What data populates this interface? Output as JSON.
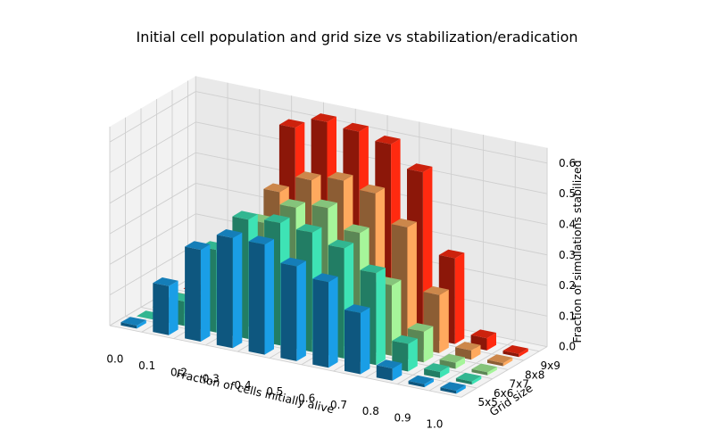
{
  "chart_data": {
    "type": "bar3d",
    "title": "Initial cell population and grid size vs stabilization/eradication",
    "xlabel": "Fraction of cells initially alive",
    "ylabel": "Grid size",
    "zlabel": "Fraction of simulations stabilized",
    "x": [
      0.0,
      0.1,
      0.2,
      0.3,
      0.4,
      0.5,
      0.6,
      0.7,
      0.8,
      0.9,
      1.0
    ],
    "x_tick_labels": [
      "0.0",
      "0.1",
      "0.2",
      "0.3",
      "0.4",
      "0.5",
      "0.6",
      "0.7",
      "0.8",
      "0.9",
      "1.0"
    ],
    "y_tick_labels": [
      "5x5",
      "6x6",
      "7x7",
      "8x8",
      "9x9"
    ],
    "z_tick_labels": [
      "0.0",
      "0.1",
      "0.2",
      "0.3",
      "0.4",
      "0.5",
      "0.6"
    ],
    "zlim": [
      0,
      0.65
    ],
    "grid": true,
    "series": [
      {
        "name": "5x5",
        "color": "#1a9ee6",
        "values": [
          0.01,
          0.16,
          0.3,
          0.36,
          0.36,
          0.31,
          0.28,
          0.2,
          0.04,
          0.01,
          0.01
        ]
      },
      {
        "name": "6x6",
        "color": "#3ee3b5",
        "values": [
          0.0,
          0.08,
          0.27,
          0.39,
          0.4,
          0.39,
          0.36,
          0.3,
          0.09,
          0.02,
          0.01
        ]
      },
      {
        "name": "7x7",
        "color": "#a6f59a",
        "values": [
          0.0,
          0.04,
          0.22,
          0.35,
          0.42,
          0.44,
          0.38,
          0.23,
          0.1,
          0.02,
          0.01
        ]
      },
      {
        "name": "8x8",
        "color": "#ffa95e",
        "values": [
          0.0,
          0.03,
          0.24,
          0.42,
          0.48,
          0.5,
          0.48,
          0.39,
          0.19,
          0.03,
          0.01
        ]
      },
      {
        "name": "9x9",
        "color": "#ff2a10",
        "values": [
          0.0,
          0.02,
          0.24,
          0.6,
          0.64,
          0.63,
          0.61,
          0.54,
          0.28,
          0.04,
          0.01
        ]
      }
    ]
  }
}
